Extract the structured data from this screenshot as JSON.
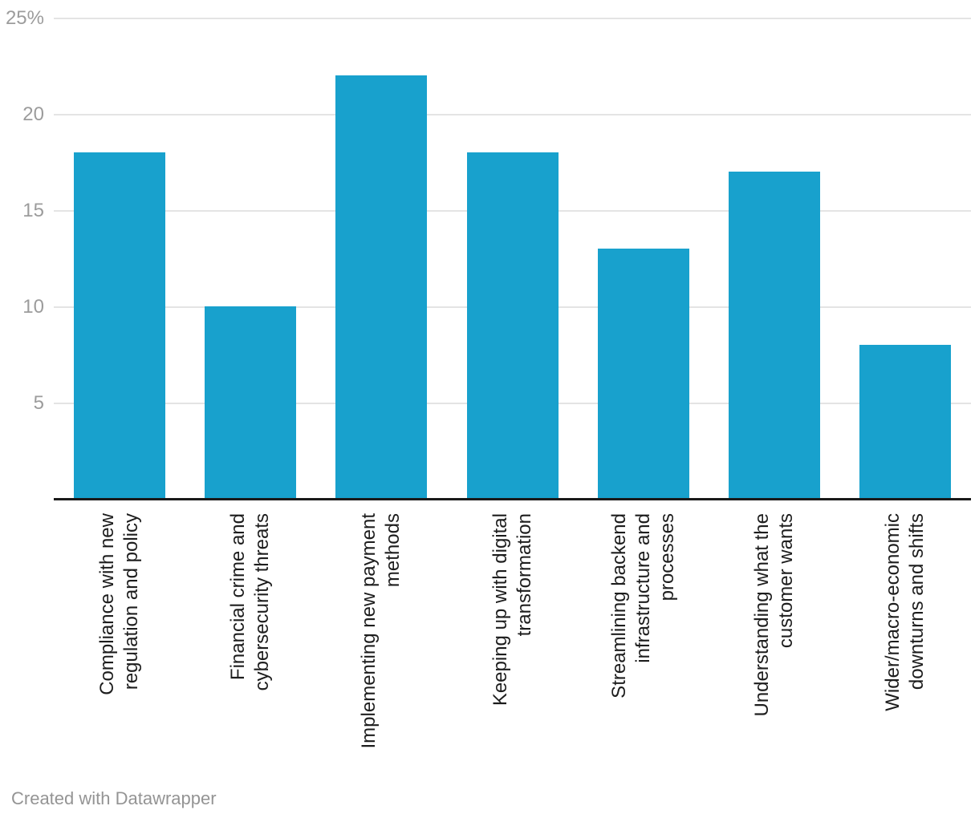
{
  "chart_data": {
    "type": "bar",
    "title": "",
    "xlabel": "",
    "ylabel": "",
    "categories": [
      "Compliance with new\nregulation and policy",
      "Financial crime and\ncybersecurity threats",
      "Implementing new payment\nmethods",
      "Keeping up with digital\ntransformation",
      "Streamlining backend\ninfrastructure and\nprocesses",
      "Understanding what the\ncustomer wants",
      "Wider/macro-economic\ndownturns and shifts"
    ],
    "values": [
      18,
      10,
      22,
      18,
      13,
      17,
      8
    ],
    "unit": "%",
    "ylim": [
      0,
      25
    ],
    "yticks": [
      {
        "value": 5,
        "label": "5"
      },
      {
        "value": 10,
        "label": "10"
      },
      {
        "value": 15,
        "label": "15"
      },
      {
        "value": 20,
        "label": "20"
      },
      {
        "value": 25,
        "label": "25%"
      }
    ],
    "grid": "horizontal",
    "legend": "none",
    "bar_color": "#18a1cd"
  },
  "colors": {
    "bar": "#18a1cd",
    "grid": "#e4e4e4",
    "axis": "#1a1a1a",
    "tick_label": "#9c9c9c",
    "category_label": "#1d1d1d",
    "credit": "#949494",
    "background": "#ffffff"
  },
  "footer": {
    "credit": "Created with Datawrapper"
  }
}
